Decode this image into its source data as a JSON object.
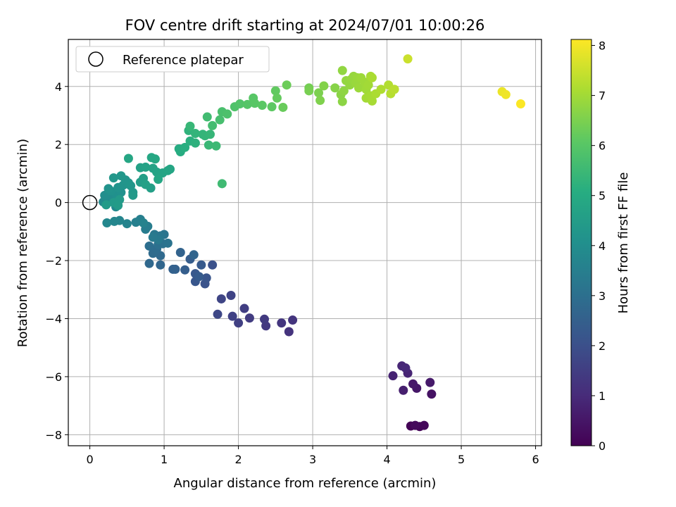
{
  "chart_data": {
    "type": "scatter",
    "title": "FOV centre drift starting at 2024/07/01 10:00:26",
    "xlabel": "Angular distance from reference (arcmin)",
    "ylabel": "Rotation from reference (arcmin)",
    "xlim": [
      -0.29,
      6.08
    ],
    "ylim": [
      -8.38,
      5.62
    ],
    "xticks": [
      0,
      1,
      2,
      3,
      4,
      5,
      6
    ],
    "yticks": [
      -8,
      -6,
      -4,
      -2,
      0,
      2,
      4
    ],
    "grid": true,
    "legend": {
      "placement": "top-left",
      "entries": [
        "Reference platepar"
      ]
    },
    "reference_point": {
      "x": 0,
      "y": 0,
      "label": "Reference platepar"
    },
    "colorbar": {
      "label": "Hours from first FF file",
      "range": [
        0,
        8.12
      ],
      "ticks": [
        0,
        1,
        2,
        3,
        4,
        5,
        6,
        7,
        8
      ],
      "colormap": "viridis"
    },
    "points": [
      {
        "x": 4.32,
        "y": -7.7,
        "t": 0.05
      },
      {
        "x": 4.44,
        "y": -7.72,
        "t": 0.1
      },
      {
        "x": 4.5,
        "y": -7.68,
        "t": 0.15
      },
      {
        "x": 4.38,
        "y": -7.68,
        "t": 0.2
      },
      {
        "x": 4.6,
        "y": -6.6,
        "t": 0.4
      },
      {
        "x": 4.4,
        "y": -6.4,
        "t": 0.5
      },
      {
        "x": 4.35,
        "y": -6.25,
        "t": 0.55
      },
      {
        "x": 4.58,
        "y": -6.2,
        "t": 0.6
      },
      {
        "x": 4.22,
        "y": -6.47,
        "t": 0.7
      },
      {
        "x": 4.08,
        "y": -5.97,
        "t": 0.8
      },
      {
        "x": 4.28,
        "y": -5.88,
        "t": 0.85
      },
      {
        "x": 4.2,
        "y": -5.63,
        "t": 0.9
      },
      {
        "x": 4.25,
        "y": -5.7,
        "t": 0.95
      },
      {
        "x": 2.68,
        "y": -4.45,
        "t": 1.2
      },
      {
        "x": 2.73,
        "y": -4.05,
        "t": 1.25
      },
      {
        "x": 2.58,
        "y": -4.15,
        "t": 1.3
      },
      {
        "x": 2.37,
        "y": -4.25,
        "t": 1.35
      },
      {
        "x": 2.35,
        "y": -4.02,
        "t": 1.4
      },
      {
        "x": 2.15,
        "y": -3.98,
        "t": 1.45
      },
      {
        "x": 2.08,
        "y": -3.65,
        "t": 1.5
      },
      {
        "x": 2.0,
        "y": -4.15,
        "t": 1.55
      },
      {
        "x": 1.92,
        "y": -3.92,
        "t": 1.6
      },
      {
        "x": 1.9,
        "y": -3.2,
        "t": 1.65
      },
      {
        "x": 1.77,
        "y": -3.32,
        "t": 1.7
      },
      {
        "x": 1.72,
        "y": -3.85,
        "t": 1.75
      },
      {
        "x": 1.65,
        "y": -2.15,
        "t": 2.05
      },
      {
        "x": 1.55,
        "y": -2.8,
        "t": 2.1
      },
      {
        "x": 1.57,
        "y": -2.6,
        "t": 2.15
      },
      {
        "x": 1.42,
        "y": -2.72,
        "t": 2.2
      },
      {
        "x": 1.42,
        "y": -2.45,
        "t": 2.25
      },
      {
        "x": 1.5,
        "y": -2.15,
        "t": 2.3
      },
      {
        "x": 1.47,
        "y": -2.55,
        "t": 2.35
      },
      {
        "x": 1.35,
        "y": -1.95,
        "t": 2.4
      },
      {
        "x": 1.28,
        "y": -2.32,
        "t": 2.45
      },
      {
        "x": 1.15,
        "y": -2.3,
        "t": 2.5
      },
      {
        "x": 1.12,
        "y": -2.3,
        "t": 2.55
      },
      {
        "x": 1.22,
        "y": -1.72,
        "t": 2.6
      },
      {
        "x": 1.4,
        "y": -1.8,
        "t": 2.65
      },
      {
        "x": 0.95,
        "y": -2.15,
        "t": 2.7
      },
      {
        "x": 0.8,
        "y": -2.1,
        "t": 2.75
      },
      {
        "x": 0.95,
        "y": -1.83,
        "t": 2.8
      },
      {
        "x": 0.85,
        "y": -1.75,
        "t": 2.85
      },
      {
        "x": 0.9,
        "y": -1.6,
        "t": 2.9
      },
      {
        "x": 0.8,
        "y": -1.5,
        "t": 2.95
      },
      {
        "x": 0.92,
        "y": -1.45,
        "t": 3.0
      },
      {
        "x": 0.98,
        "y": -1.42,
        "t": 3.05
      },
      {
        "x": 1.05,
        "y": -1.4,
        "t": 3.1
      },
      {
        "x": 1.0,
        "y": -1.1,
        "t": 3.15
      },
      {
        "x": 0.95,
        "y": -1.15,
        "t": 3.2
      },
      {
        "x": 0.87,
        "y": -1.1,
        "t": 3.25
      },
      {
        "x": 0.92,
        "y": -1.28,
        "t": 3.3
      },
      {
        "x": 0.85,
        "y": -1.2,
        "t": 3.35
      },
      {
        "x": 0.75,
        "y": -0.92,
        "t": 3.4
      },
      {
        "x": 0.78,
        "y": -0.82,
        "t": 3.45
      },
      {
        "x": 0.68,
        "y": -0.58,
        "t": 3.5
      },
      {
        "x": 0.62,
        "y": -0.68,
        "t": 3.55
      },
      {
        "x": 0.72,
        "y": -0.7,
        "t": 3.6
      },
      {
        "x": 0.5,
        "y": -0.73,
        "t": 3.65
      },
      {
        "x": 0.4,
        "y": -0.62,
        "t": 3.7
      },
      {
        "x": 0.33,
        "y": -0.65,
        "t": 3.72
      },
      {
        "x": 0.23,
        "y": -0.7,
        "t": 3.75
      },
      {
        "x": 0.35,
        "y": -0.15,
        "t": 3.8
      },
      {
        "x": 0.18,
        "y": 0.02,
        "t": 3.85
      },
      {
        "x": 0.25,
        "y": 0.1,
        "t": 3.9
      },
      {
        "x": 0.3,
        "y": 0.2,
        "t": 3.95
      },
      {
        "x": 0.2,
        "y": 0.25,
        "t": 4.0
      },
      {
        "x": 0.35,
        "y": 0.3,
        "t": 4.05
      },
      {
        "x": 0.42,
        "y": 0.35,
        "t": 4.1
      },
      {
        "x": 0.28,
        "y": 0.4,
        "t": 4.12
      },
      {
        "x": 0.25,
        "y": 0.48,
        "t": 4.15
      },
      {
        "x": 0.38,
        "y": 0.52,
        "t": 4.18
      },
      {
        "x": 0.45,
        "y": 0.6,
        "t": 4.2
      },
      {
        "x": 0.52,
        "y": 0.68,
        "t": 4.22
      },
      {
        "x": 0.48,
        "y": 0.78,
        "t": 4.25
      },
      {
        "x": 0.55,
        "y": 0.58,
        "t": 4.28
      },
      {
        "x": 0.42,
        "y": 0.92,
        "t": 4.3
      },
      {
        "x": 0.32,
        "y": 0.85,
        "t": 4.32
      },
      {
        "x": 0.58,
        "y": 0.35,
        "t": 4.35
      },
      {
        "x": 0.58,
        "y": 0.25,
        "t": 4.37
      },
      {
        "x": 0.4,
        "y": 0.1,
        "t": 4.4
      },
      {
        "x": 0.32,
        "y": 0.0,
        "t": 4.42
      },
      {
        "x": 0.22,
        "y": -0.08,
        "t": 4.44
      },
      {
        "x": 0.38,
        "y": -0.1,
        "t": 4.46
      },
      {
        "x": 0.68,
        "y": 0.7,
        "t": 4.5
      },
      {
        "x": 0.72,
        "y": 0.83,
        "t": 4.55
      },
      {
        "x": 0.82,
        "y": 0.5,
        "t": 4.6
      },
      {
        "x": 0.75,
        "y": 0.62,
        "t": 4.62
      },
      {
        "x": 0.68,
        "y": 1.2,
        "t": 4.65
      },
      {
        "x": 0.75,
        "y": 1.22,
        "t": 4.68
      },
      {
        "x": 0.85,
        "y": 1.18,
        "t": 4.7
      },
      {
        "x": 0.9,
        "y": 1.05,
        "t": 4.72
      },
      {
        "x": 0.98,
        "y": 1.02,
        "t": 4.75
      },
      {
        "x": 1.05,
        "y": 1.1,
        "t": 4.78
      },
      {
        "x": 1.08,
        "y": 1.15,
        "t": 4.8
      },
      {
        "x": 0.92,
        "y": 0.8,
        "t": 4.82
      },
      {
        "x": 0.52,
        "y": 1.52,
        "t": 4.84
      },
      {
        "x": 0.83,
        "y": 1.55,
        "t": 4.86
      },
      {
        "x": 0.88,
        "y": 1.5,
        "t": 4.88
      },
      {
        "x": 1.2,
        "y": 1.85,
        "t": 5.0
      },
      {
        "x": 1.22,
        "y": 1.75,
        "t": 5.05
      },
      {
        "x": 1.28,
        "y": 1.9,
        "t": 5.1
      },
      {
        "x": 1.35,
        "y": 2.12,
        "t": 5.15
      },
      {
        "x": 1.42,
        "y": 2.05,
        "t": 5.2
      },
      {
        "x": 1.33,
        "y": 2.48,
        "t": 5.25
      },
      {
        "x": 1.42,
        "y": 2.38,
        "t": 5.3
      },
      {
        "x": 1.52,
        "y": 2.35,
        "t": 5.32
      },
      {
        "x": 1.55,
        "y": 2.3,
        "t": 5.35
      },
      {
        "x": 1.62,
        "y": 2.35,
        "t": 5.38
      },
      {
        "x": 1.35,
        "y": 2.63,
        "t": 5.4
      },
      {
        "x": 1.6,
        "y": 1.98,
        "t": 5.45
      },
      {
        "x": 1.7,
        "y": 1.95,
        "t": 5.5
      },
      {
        "x": 1.78,
        "y": 0.65,
        "t": 5.55
      },
      {
        "x": 1.58,
        "y": 2.95,
        "t": 5.6
      },
      {
        "x": 1.65,
        "y": 2.65,
        "t": 5.65
      },
      {
        "x": 1.75,
        "y": 2.85,
        "t": 5.7
      },
      {
        "x": 1.78,
        "y": 3.13,
        "t": 5.75
      },
      {
        "x": 1.85,
        "y": 3.05,
        "t": 5.8
      },
      {
        "x": 1.95,
        "y": 3.3,
        "t": 5.85
      },
      {
        "x": 2.02,
        "y": 3.4,
        "t": 5.9
      },
      {
        "x": 2.12,
        "y": 3.38,
        "t": 5.95
      },
      {
        "x": 2.2,
        "y": 3.6,
        "t": 6.0
      },
      {
        "x": 2.22,
        "y": 3.42,
        "t": 6.02
      },
      {
        "x": 2.32,
        "y": 3.35,
        "t": 6.05
      },
      {
        "x": 2.45,
        "y": 3.3,
        "t": 6.1
      },
      {
        "x": 2.5,
        "y": 3.85,
        "t": 6.15
      },
      {
        "x": 2.52,
        "y": 3.6,
        "t": 6.2
      },
      {
        "x": 2.6,
        "y": 3.28,
        "t": 6.25
      },
      {
        "x": 2.65,
        "y": 4.05,
        "t": 6.3
      },
      {
        "x": 2.95,
        "y": 3.95,
        "t": 6.4
      },
      {
        "x": 2.95,
        "y": 3.85,
        "t": 6.45
      },
      {
        "x": 3.08,
        "y": 3.78,
        "t": 6.5
      },
      {
        "x": 3.1,
        "y": 3.52,
        "t": 6.55
      },
      {
        "x": 3.15,
        "y": 4.02,
        "t": 6.6
      },
      {
        "x": 3.3,
        "y": 3.95,
        "t": 6.65
      },
      {
        "x": 3.38,
        "y": 3.72,
        "t": 6.7
      },
      {
        "x": 3.4,
        "y": 3.48,
        "t": 6.72
      },
      {
        "x": 3.42,
        "y": 3.85,
        "t": 6.75
      },
      {
        "x": 3.4,
        "y": 4.55,
        "t": 6.78
      },
      {
        "x": 3.45,
        "y": 4.2,
        "t": 6.8
      },
      {
        "x": 3.5,
        "y": 4.05,
        "t": 6.82
      },
      {
        "x": 3.52,
        "y": 4.25,
        "t": 6.84
      },
      {
        "x": 3.55,
        "y": 4.35,
        "t": 6.86
      },
      {
        "x": 3.58,
        "y": 4.12,
        "t": 6.88
      },
      {
        "x": 3.6,
        "y": 4.3,
        "t": 6.9
      },
      {
        "x": 3.62,
        "y": 3.95,
        "t": 6.92
      },
      {
        "x": 3.65,
        "y": 4.3,
        "t": 6.94
      },
      {
        "x": 3.7,
        "y": 4.15,
        "t": 6.96
      },
      {
        "x": 3.72,
        "y": 3.9,
        "t": 6.98
      },
      {
        "x": 3.75,
        "y": 4.05,
        "t": 7.0
      },
      {
        "x": 3.72,
        "y": 3.6,
        "t": 7.02
      },
      {
        "x": 3.78,
        "y": 3.68,
        "t": 7.04
      },
      {
        "x": 3.8,
        "y": 3.5,
        "t": 7.06
      },
      {
        "x": 3.78,
        "y": 4.35,
        "t": 7.08
      },
      {
        "x": 3.8,
        "y": 4.3,
        "t": 7.1
      },
      {
        "x": 3.85,
        "y": 3.75,
        "t": 7.12
      },
      {
        "x": 3.92,
        "y": 3.9,
        "t": 7.15
      },
      {
        "x": 4.02,
        "y": 4.05,
        "t": 7.2
      },
      {
        "x": 4.05,
        "y": 3.75,
        "t": 7.25
      },
      {
        "x": 4.1,
        "y": 3.9,
        "t": 7.3
      },
      {
        "x": 4.28,
        "y": 4.95,
        "t": 7.5
      },
      {
        "x": 5.55,
        "y": 3.82,
        "t": 7.9
      },
      {
        "x": 5.6,
        "y": 3.72,
        "t": 7.95
      },
      {
        "x": 5.8,
        "y": 3.4,
        "t": 8.1
      }
    ]
  }
}
